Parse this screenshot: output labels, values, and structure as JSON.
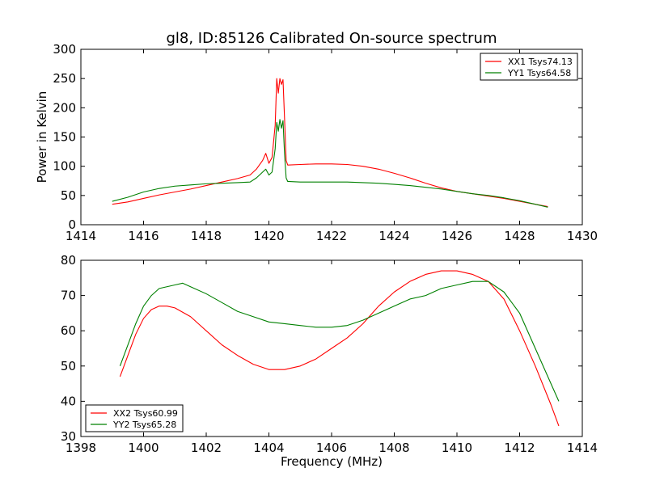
{
  "figure": {
    "title": "gl8, ID:85126 Calibrated On-source spectrum"
  },
  "colors": {
    "red": "#ff0000",
    "green": "#008000"
  },
  "chart_data": [
    {
      "type": "line",
      "title": "gl8, ID:85126 Calibrated On-source spectrum",
      "xlabel": "",
      "ylabel": "Power in Kelvin",
      "xlim": [
        1414,
        1430
      ],
      "ylim": [
        0,
        300
      ],
      "xticks": [
        1414,
        1416,
        1418,
        1420,
        1422,
        1424,
        1426,
        1428,
        1430
      ],
      "yticks": [
        0,
        50,
        100,
        150,
        200,
        250,
        300
      ],
      "grid": false,
      "legend_position": "upper right",
      "series": [
        {
          "name": "XX1 Tsys74.13",
          "color": "#ff0000",
          "points": [
            [
              1415.0,
              35
            ],
            [
              1415.5,
              39
            ],
            [
              1416.0,
              45
            ],
            [
              1416.5,
              51
            ],
            [
              1417.0,
              56
            ],
            [
              1417.5,
              61
            ],
            [
              1418.0,
              67
            ],
            [
              1418.5,
              73
            ],
            [
              1419.0,
              79
            ],
            [
              1419.4,
              85
            ],
            [
              1419.6,
              95
            ],
            [
              1419.8,
              110
            ],
            [
              1419.9,
              122
            ],
            [
              1420.0,
              105
            ],
            [
              1420.1,
              115
            ],
            [
              1420.2,
              170
            ],
            [
              1420.25,
              250
            ],
            [
              1420.3,
              225
            ],
            [
              1420.35,
              250
            ],
            [
              1420.4,
              240
            ],
            [
              1420.45,
              248
            ],
            [
              1420.5,
              180
            ],
            [
              1420.55,
              110
            ],
            [
              1420.6,
              102
            ],
            [
              1421.0,
              103
            ],
            [
              1421.5,
              104
            ],
            [
              1422.0,
              104
            ],
            [
              1422.5,
              103
            ],
            [
              1423.0,
              100
            ],
            [
              1423.5,
              95
            ],
            [
              1424.0,
              88
            ],
            [
              1424.5,
              80
            ],
            [
              1425.0,
              71
            ],
            [
              1425.5,
              63
            ],
            [
              1426.0,
              57
            ],
            [
              1426.5,
              53
            ],
            [
              1427.0,
              49
            ],
            [
              1427.5,
              45
            ],
            [
              1428.0,
              40
            ],
            [
              1428.5,
              35
            ],
            [
              1428.9,
              31
            ]
          ]
        },
        {
          "name": "YY1 Tsys64.58",
          "color": "#008000",
          "points": [
            [
              1415.0,
              40
            ],
            [
              1415.5,
              47
            ],
            [
              1416.0,
              56
            ],
            [
              1416.5,
              62
            ],
            [
              1417.0,
              66
            ],
            [
              1417.5,
              68
            ],
            [
              1418.0,
              70
            ],
            [
              1418.5,
              71
            ],
            [
              1419.0,
              72
            ],
            [
              1419.4,
              73
            ],
            [
              1419.6,
              80
            ],
            [
              1419.8,
              90
            ],
            [
              1419.9,
              95
            ],
            [
              1420.0,
              85
            ],
            [
              1420.1,
              90
            ],
            [
              1420.2,
              130
            ],
            [
              1420.25,
              175
            ],
            [
              1420.3,
              160
            ],
            [
              1420.35,
              180
            ],
            [
              1420.4,
              165
            ],
            [
              1420.45,
              178
            ],
            [
              1420.5,
              120
            ],
            [
              1420.55,
              80
            ],
            [
              1420.6,
              74
            ],
            [
              1421.0,
              73
            ],
            [
              1421.5,
              73
            ],
            [
              1422.0,
              73
            ],
            [
              1422.5,
              73
            ],
            [
              1423.0,
              72
            ],
            [
              1423.5,
              71
            ],
            [
              1424.0,
              69
            ],
            [
              1424.5,
              67
            ],
            [
              1425.0,
              64
            ],
            [
              1425.5,
              61
            ],
            [
              1426.0,
              57
            ],
            [
              1426.5,
              53
            ],
            [
              1427.0,
              50
            ],
            [
              1427.5,
              46
            ],
            [
              1428.0,
              41
            ],
            [
              1428.5,
              35
            ],
            [
              1428.9,
              30
            ]
          ]
        }
      ]
    },
    {
      "type": "line",
      "title": "",
      "xlabel": "Frequency (MHz)",
      "ylabel": "",
      "xlim": [
        1398,
        1414
      ],
      "ylim": [
        30,
        80
      ],
      "xticks": [
        1398,
        1400,
        1402,
        1404,
        1406,
        1408,
        1410,
        1412,
        1414
      ],
      "yticks": [
        30,
        40,
        50,
        60,
        70,
        80
      ],
      "grid": false,
      "legend_position": "lower left",
      "series": [
        {
          "name": "XX2 Tsys60.99",
          "color": "#ff0000",
          "points": [
            [
              1399.25,
              47
            ],
            [
              1399.5,
              53
            ],
            [
              1399.75,
              59
            ],
            [
              1400.0,
              63.5
            ],
            [
              1400.25,
              66
            ],
            [
              1400.5,
              67
            ],
            [
              1400.75,
              67
            ],
            [
              1401.0,
              66.5
            ],
            [
              1401.5,
              64
            ],
            [
              1402.0,
              60
            ],
            [
              1402.5,
              56
            ],
            [
              1403.0,
              53
            ],
            [
              1403.5,
              50.5
            ],
            [
              1404.0,
              49
            ],
            [
              1404.5,
              49
            ],
            [
              1405.0,
              50
            ],
            [
              1405.5,
              52
            ],
            [
              1406.0,
              55
            ],
            [
              1406.5,
              58
            ],
            [
              1407.0,
              62
            ],
            [
              1407.5,
              67
            ],
            [
              1408.0,
              71
            ],
            [
              1408.5,
              74
            ],
            [
              1409.0,
              76
            ],
            [
              1409.5,
              77
            ],
            [
              1410.0,
              77
            ],
            [
              1410.5,
              76
            ],
            [
              1411.0,
              74
            ],
            [
              1411.5,
              69
            ],
            [
              1412.0,
              60
            ],
            [
              1412.5,
              50
            ],
            [
              1413.0,
              39
            ],
            [
              1413.25,
              33
            ]
          ]
        },
        {
          "name": "YY2 Tsys65.28",
          "color": "#008000",
          "points": [
            [
              1399.25,
              50
            ],
            [
              1399.5,
              56
            ],
            [
              1399.75,
              62
            ],
            [
              1400.0,
              67
            ],
            [
              1400.25,
              70
            ],
            [
              1400.5,
              72
            ],
            [
              1401.0,
              73
            ],
            [
              1401.25,
              73.5
            ],
            [
              1401.5,
              72.5
            ],
            [
              1402.0,
              70.5
            ],
            [
              1402.5,
              68
            ],
            [
              1403.0,
              65.5
            ],
            [
              1403.5,
              64
            ],
            [
              1404.0,
              62.5
            ],
            [
              1404.5,
              62
            ],
            [
              1405.0,
              61.5
            ],
            [
              1405.5,
              61
            ],
            [
              1406.0,
              61
            ],
            [
              1406.5,
              61.5
            ],
            [
              1407.0,
              63
            ],
            [
              1407.5,
              65
            ],
            [
              1408.0,
              67
            ],
            [
              1408.5,
              69
            ],
            [
              1409.0,
              70
            ],
            [
              1409.5,
              72
            ],
            [
              1410.0,
              73
            ],
            [
              1410.5,
              74
            ],
            [
              1411.0,
              74
            ],
            [
              1411.5,
              71
            ],
            [
              1412.0,
              65
            ],
            [
              1412.5,
              55
            ],
            [
              1413.0,
              45
            ],
            [
              1413.25,
              40
            ]
          ]
        }
      ]
    }
  ]
}
